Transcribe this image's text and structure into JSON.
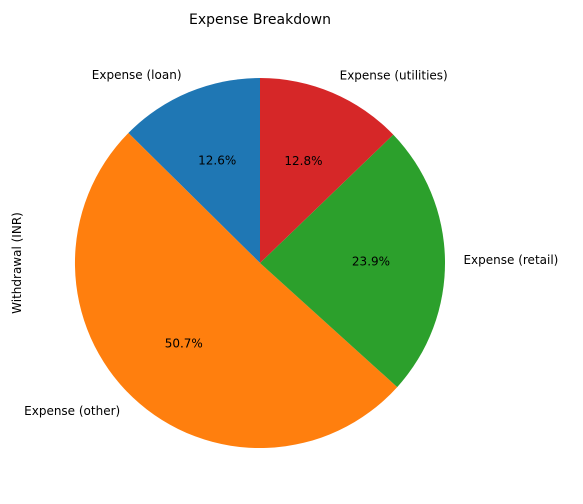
{
  "chart_data": {
    "type": "pie",
    "title": "Expense Breakdown",
    "ylabel": "Withdrawal (INR)",
    "start_angle_deg": 90,
    "direction": "counterclockwise",
    "legend": "none",
    "slices": [
      {
        "label": "Expense (loan)",
        "value": 12.6,
        "pct_label": "12.6%",
        "color": "#1f77b4"
      },
      {
        "label": "Expense (other)",
        "value": 50.7,
        "pct_label": "50.7%",
        "color": "#ff7f0e"
      },
      {
        "label": "Expense (retail)",
        "value": 23.9,
        "pct_label": "23.9%",
        "color": "#2ca02c"
      },
      {
        "label": "Expense (utilities)",
        "value": 12.8,
        "pct_label": "12.8%",
        "color": "#d62728"
      }
    ]
  }
}
